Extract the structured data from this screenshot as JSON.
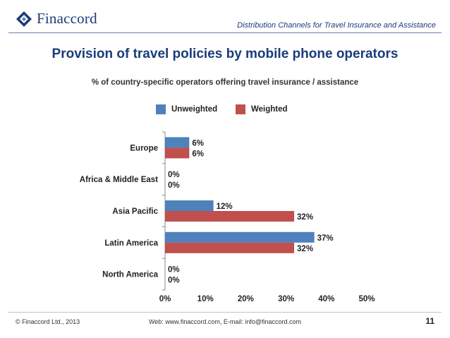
{
  "header": {
    "brand": "Finaccord",
    "caption": "Distribution Channels for Travel Insurance and Assistance"
  },
  "colors": {
    "brand": "#1a3c7a",
    "unweighted": "#4f81bd",
    "weighted": "#c0504d"
  },
  "chart_data": {
    "type": "bar",
    "orientation": "horizontal",
    "title": "Provision of travel policies by mobile phone operators",
    "subtitle": "% of country-specific operators offering travel insurance / assistance",
    "categories": [
      "Europe",
      "Africa & Middle East",
      "Asia Pacific",
      "Latin America",
      "North America"
    ],
    "series": [
      {
        "name": "Unweighted",
        "values": [
          6,
          0,
          12,
          37,
          0
        ],
        "labels": [
          "6%",
          "0%",
          "12%",
          "37%",
          "0%"
        ]
      },
      {
        "name": "Weighted",
        "values": [
          6,
          0,
          32,
          32,
          0
        ],
        "labels": [
          "6%",
          "0%",
          "32%",
          "32%",
          "0%"
        ]
      }
    ],
    "xlim": [
      0,
      50
    ],
    "xticks": [
      0,
      10,
      20,
      30,
      40,
      50
    ],
    "xtick_labels": [
      "0%",
      "10%",
      "20%",
      "30%",
      "40%",
      "50%"
    ],
    "legend_position": "top"
  },
  "footer": {
    "copyright": "© Finaccord Ltd., 2013",
    "contact": "Web: www.finaccord.com, E-mail: info@finaccord.com",
    "page": "11"
  }
}
